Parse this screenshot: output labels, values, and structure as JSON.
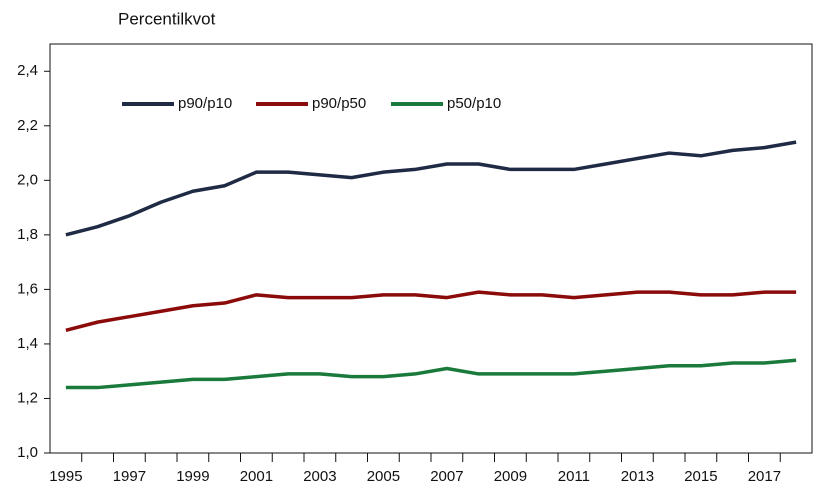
{
  "chart_data": {
    "type": "line",
    "title": "Percentilkvot",
    "categories": [
      "1995",
      null,
      "1997",
      null,
      "1999",
      null,
      "2001",
      null,
      "2003",
      null,
      "2005",
      null,
      "2007",
      null,
      "2009",
      null,
      "2011",
      null,
      "2013",
      null,
      "2015",
      null,
      "2017",
      null
    ],
    "series": [
      {
        "name": "p90/p10",
        "color": "#1f2a44",
        "values": [
          1.8,
          1.83,
          1.87,
          1.92,
          1.96,
          1.98,
          2.03,
          2.03,
          2.02,
          2.01,
          2.03,
          2.04,
          2.06,
          2.06,
          2.04,
          2.04,
          2.04,
          2.06,
          2.08,
          2.1,
          2.09,
          2.11,
          2.12,
          2.14
        ]
      },
      {
        "name": "p90/p50",
        "color": "#8b0a0a",
        "values": [
          1.45,
          1.48,
          1.5,
          1.52,
          1.54,
          1.55,
          1.58,
          1.57,
          1.57,
          1.57,
          1.58,
          1.58,
          1.57,
          1.59,
          1.58,
          1.58,
          1.57,
          1.58,
          1.59,
          1.59,
          1.58,
          1.58,
          1.59,
          1.59
        ]
      },
      {
        "name": "p50/p10",
        "color": "#1a7a3c",
        "values": [
          1.24,
          1.24,
          1.25,
          1.26,
          1.27,
          1.27,
          1.28,
          1.29,
          1.29,
          1.28,
          1.28,
          1.29,
          1.31,
          1.29,
          1.29,
          1.29,
          1.29,
          1.3,
          1.31,
          1.32,
          1.32,
          1.33,
          1.33,
          1.34
        ]
      }
    ],
    "ylim": [
      1.0,
      2.5
    ],
    "yticks": [
      {
        "value": 1.0,
        "label": "1,0"
      },
      {
        "value": 1.2,
        "label": "1,2"
      },
      {
        "value": 1.4,
        "label": "1,4"
      },
      {
        "value": 1.6,
        "label": "1,6"
      },
      {
        "value": 1.8,
        "label": "1,8"
      },
      {
        "value": 2.0,
        "label": "2,0"
      },
      {
        "value": 2.2,
        "label": "2,2"
      },
      {
        "value": 2.4,
        "label": "2,4"
      }
    ],
    "grid": false
  }
}
